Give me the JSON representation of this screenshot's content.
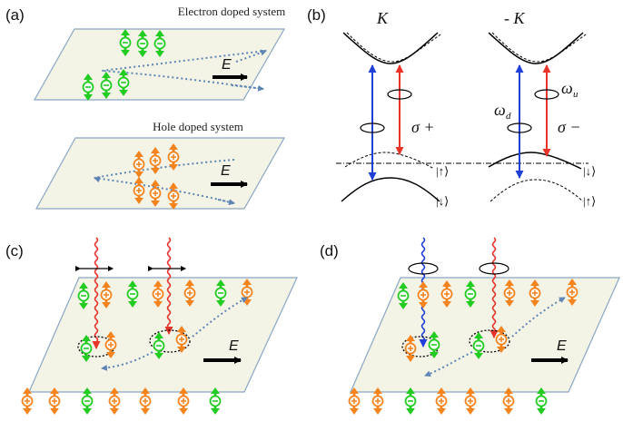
{
  "panels": {
    "a": {
      "label": "(a)",
      "electron_caption": "Electron doped system",
      "hole_caption": "Hole doped system",
      "field_label": "E"
    },
    "b": {
      "label": "(b)",
      "valley_left": "K",
      "valley_right": "- K",
      "sigma_plus": "σ +",
      "sigma_minus": "σ −",
      "omega_d": "ω",
      "omega_d_sub": "d",
      "omega_u": "ω",
      "omega_u_sub": "u",
      "ket_up": "|↑⟩",
      "ket_down": "|↓⟩"
    },
    "c": {
      "label": "(c)",
      "field_label": "E"
    },
    "d": {
      "label": "(d)",
      "field_label": "E"
    }
  },
  "colors": {
    "sheet_fill": "#f3f3e6",
    "sheet_edge": "#8aa6c4",
    "electron": "#22cc22",
    "hole": "#f5841f",
    "red_photon": "#e8332a",
    "blue_photon": "#1f3fd6",
    "dotted_path": "#5f86b4"
  }
}
